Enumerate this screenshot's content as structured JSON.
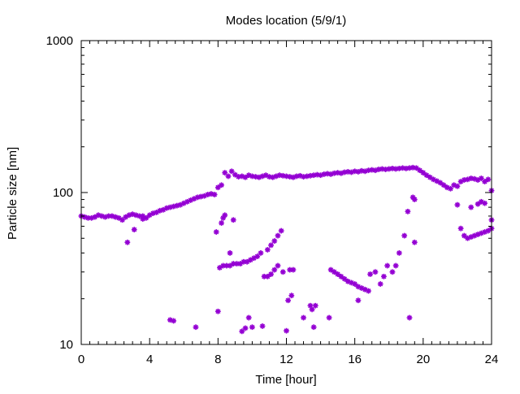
{
  "chart_data": {
    "type": "scatter",
    "title": "Modes location (5/9/1)",
    "xlabel": "Time [hour]",
    "ylabel": "Particle size [nm]",
    "xlim": [
      0,
      24
    ],
    "ylim": [
      10,
      1000
    ],
    "yscale": "log",
    "xticks": [
      0,
      4,
      8,
      12,
      16,
      20,
      24
    ],
    "xtick_labels": [
      "0",
      "4",
      "8",
      "12",
      "16",
      "20",
      "24"
    ],
    "yticks": [
      10,
      100,
      1000
    ],
    "ytick_labels": [
      "10",
      "100",
      "1000"
    ],
    "grid": false,
    "marker_color": "#9400d3",
    "series": [
      {
        "marker": "star",
        "points": [
          [
            0.0,
            70
          ],
          [
            0.2,
            69
          ],
          [
            0.4,
            68
          ],
          [
            0.6,
            68
          ],
          [
            0.8,
            69
          ],
          [
            1.0,
            71
          ],
          [
            1.2,
            70
          ],
          [
            1.4,
            69
          ],
          [
            1.6,
            70
          ],
          [
            1.8,
            70
          ],
          [
            2.0,
            69
          ],
          [
            2.2,
            68
          ],
          [
            2.4,
            66
          ],
          [
            2.6,
            69
          ],
          [
            2.8,
            71
          ],
          [
            3.0,
            72
          ],
          [
            3.2,
            71
          ],
          [
            3.4,
            70
          ],
          [
            3.6,
            70
          ],
          [
            3.8,
            68
          ],
          [
            4.0,
            71
          ],
          [
            4.2,
            73
          ],
          [
            4.4,
            74
          ],
          [
            4.6,
            76
          ],
          [
            4.8,
            77
          ],
          [
            5.0,
            79
          ],
          [
            5.2,
            80
          ],
          [
            5.4,
            81
          ],
          [
            5.6,
            82
          ],
          [
            5.8,
            83
          ],
          [
            6.0,
            85
          ],
          [
            6.2,
            87
          ],
          [
            6.4,
            89
          ],
          [
            6.6,
            91
          ],
          [
            6.8,
            93
          ],
          [
            7.0,
            94
          ],
          [
            7.2,
            95
          ],
          [
            7.4,
            97
          ],
          [
            7.6,
            98
          ],
          [
            7.8,
            97
          ],
          [
            8.0,
            108
          ],
          [
            8.2,
            112
          ],
          [
            8.4,
            135
          ],
          [
            8.6,
            128
          ],
          [
            8.8,
            138
          ],
          [
            9.0,
            131
          ],
          [
            9.2,
            127
          ],
          [
            9.4,
            128
          ],
          [
            9.6,
            126
          ],
          [
            9.8,
            130
          ],
          [
            10.0,
            128
          ],
          [
            10.2,
            127
          ],
          [
            10.4,
            126
          ],
          [
            10.6,
            128
          ],
          [
            10.8,
            130
          ],
          [
            11.0,
            127
          ],
          [
            11.2,
            126
          ],
          [
            11.4,
            128
          ],
          [
            11.6,
            130
          ],
          [
            11.8,
            129
          ],
          [
            12.0,
            128
          ],
          [
            12.2,
            127
          ],
          [
            12.4,
            126
          ],
          [
            12.6,
            128
          ],
          [
            12.8,
            129
          ],
          [
            13.0,
            127
          ],
          [
            13.2,
            128
          ],
          [
            13.4,
            129
          ],
          [
            13.6,
            130
          ],
          [
            13.8,
            131
          ],
          [
            14.0,
            130
          ],
          [
            14.2,
            132
          ],
          [
            14.4,
            133
          ],
          [
            14.6,
            132
          ],
          [
            14.8,
            134
          ],
          [
            15.0,
            135
          ],
          [
            15.2,
            134
          ],
          [
            15.4,
            136
          ],
          [
            15.6,
            137
          ],
          [
            15.8,
            136
          ],
          [
            16.0,
            138
          ],
          [
            16.2,
            137
          ],
          [
            16.4,
            139
          ],
          [
            16.6,
            138
          ],
          [
            16.8,
            140
          ],
          [
            17.0,
            141
          ],
          [
            17.2,
            140
          ],
          [
            17.4,
            142
          ],
          [
            17.6,
            143
          ],
          [
            17.8,
            142
          ],
          [
            18.0,
            143
          ],
          [
            18.2,
            144
          ],
          [
            18.4,
            143
          ],
          [
            18.6,
            144
          ],
          [
            18.8,
            145
          ],
          [
            19.0,
            144
          ],
          [
            19.2,
            145
          ],
          [
            19.4,
            146
          ],
          [
            19.6,
            145
          ],
          [
            19.8,
            140
          ],
          [
            20.0,
            135
          ],
          [
            20.2,
            130
          ],
          [
            20.4,
            126
          ],
          [
            20.6,
            122
          ],
          [
            20.8,
            119
          ],
          [
            21.0,
            116
          ],
          [
            21.2,
            112
          ],
          [
            21.4,
            108
          ],
          [
            21.6,
            106
          ],
          [
            21.8,
            112
          ],
          [
            22.0,
            110
          ],
          [
            22.2,
            118
          ],
          [
            22.4,
            121
          ],
          [
            22.6,
            122
          ],
          [
            22.8,
            124
          ],
          [
            23.0,
            123
          ],
          [
            23.2,
            121
          ],
          [
            23.4,
            124
          ],
          [
            23.6,
            118
          ],
          [
            23.8,
            122
          ],
          [
            24.0,
            103
          ],
          [
            2.7,
            47
          ],
          [
            3.1,
            57
          ],
          [
            3.6,
            67
          ],
          [
            5.2,
            14.5
          ],
          [
            5.4,
            14.3
          ],
          [
            6.7,
            13
          ],
          [
            7.9,
            55
          ],
          [
            8.0,
            16.5
          ],
          [
            8.2,
            63
          ],
          [
            8.3,
            68
          ],
          [
            8.4,
            71
          ],
          [
            8.7,
            40
          ],
          [
            8.9,
            66
          ],
          [
            8.1,
            32
          ],
          [
            8.3,
            33
          ],
          [
            8.5,
            33
          ],
          [
            8.7,
            33
          ],
          [
            8.9,
            34
          ],
          [
            9.1,
            34
          ],
          [
            9.3,
            34
          ],
          [
            9.5,
            35
          ],
          [
            9.7,
            35
          ],
          [
            9.9,
            36
          ],
          [
            10.1,
            37
          ],
          [
            10.3,
            38
          ],
          [
            10.5,
            40
          ],
          [
            10.7,
            28
          ],
          [
            10.9,
            28
          ],
          [
            11.1,
            29
          ],
          [
            11.3,
            31
          ],
          [
            11.5,
            33
          ],
          [
            10.9,
            42
          ],
          [
            11.1,
            45
          ],
          [
            11.3,
            48
          ],
          [
            11.5,
            52
          ],
          [
            11.7,
            56
          ],
          [
            11.8,
            30
          ],
          [
            12.2,
            31
          ],
          [
            12.4,
            31
          ],
          [
            9.4,
            12.2
          ],
          [
            9.6,
            12.8
          ],
          [
            9.8,
            15
          ],
          [
            10.0,
            13
          ],
          [
            10.6,
            13.2
          ],
          [
            12.0,
            12.3
          ],
          [
            12.1,
            19.5
          ],
          [
            12.3,
            21
          ],
          [
            13.0,
            15
          ],
          [
            13.4,
            18
          ],
          [
            13.5,
            17
          ],
          [
            13.6,
            13
          ],
          [
            13.7,
            18
          ],
          [
            14.5,
            15
          ],
          [
            14.6,
            31
          ],
          [
            14.8,
            30
          ],
          [
            15.0,
            29
          ],
          [
            15.2,
            28
          ],
          [
            15.4,
            27
          ],
          [
            15.6,
            26
          ],
          [
            15.8,
            25.5
          ],
          [
            16.0,
            25
          ],
          [
            16.2,
            24
          ],
          [
            16.4,
            23.5
          ],
          [
            16.6,
            23
          ],
          [
            16.8,
            22.5
          ],
          [
            16.2,
            19.5
          ],
          [
            16.9,
            29
          ],
          [
            17.2,
            30
          ],
          [
            17.5,
            25
          ],
          [
            17.7,
            28
          ],
          [
            17.9,
            33
          ],
          [
            18.2,
            30
          ],
          [
            18.4,
            33
          ],
          [
            18.6,
            40
          ],
          [
            18.9,
            52
          ],
          [
            19.1,
            75
          ],
          [
            19.4,
            93
          ],
          [
            19.5,
            90
          ],
          [
            19.2,
            15
          ],
          [
            19.5,
            47
          ],
          [
            22.2,
            58
          ],
          [
            22.4,
            52
          ],
          [
            22.6,
            50
          ],
          [
            22.8,
            51
          ],
          [
            23.0,
            52
          ],
          [
            23.2,
            53
          ],
          [
            23.4,
            54
          ],
          [
            23.6,
            55
          ],
          [
            23.8,
            56
          ],
          [
            24.0,
            58
          ],
          [
            22.8,
            80
          ],
          [
            23.2,
            84
          ],
          [
            23.4,
            87
          ],
          [
            23.6,
            85
          ],
          [
            24.0,
            66
          ],
          [
            22.0,
            83
          ]
        ]
      }
    ]
  }
}
